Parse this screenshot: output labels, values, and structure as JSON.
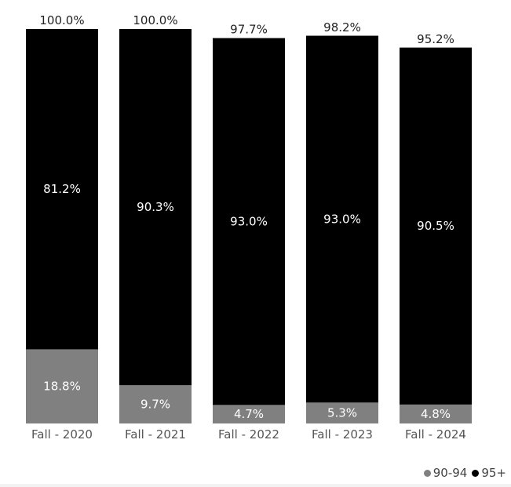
{
  "chart_data": {
    "type": "bar",
    "stacked": true,
    "categories": [
      "Fall - 2020",
      "Fall - 2021",
      "Fall - 2022",
      "Fall - 2023",
      "Fall - 2024"
    ],
    "series": [
      {
        "name": "90-94",
        "color": "#808080",
        "values": [
          18.8,
          9.7,
          4.7,
          5.3,
          4.8
        ],
        "labels": [
          "18.8%",
          "9.7%",
          "4.7%",
          "5.3%",
          "4.8%"
        ]
      },
      {
        "name": "95+",
        "color": "#000000",
        "values": [
          81.2,
          90.3,
          93.0,
          93.0,
          90.5
        ],
        "labels": [
          "81.2%",
          "90.3%",
          "93.0%",
          "93.0%",
          "90.5%"
        ]
      }
    ],
    "totals": [
      100.0,
      100.0,
      97.7,
      98.2,
      95.2
    ],
    "total_labels": [
      "100.0%",
      "100.0%",
      "97.7%",
      "98.2%",
      "95.2%"
    ],
    "ylim": [
      0,
      100
    ],
    "grid": false,
    "legend_position": "bottom-right",
    "title": "",
    "xlabel": "",
    "ylabel": ""
  }
}
